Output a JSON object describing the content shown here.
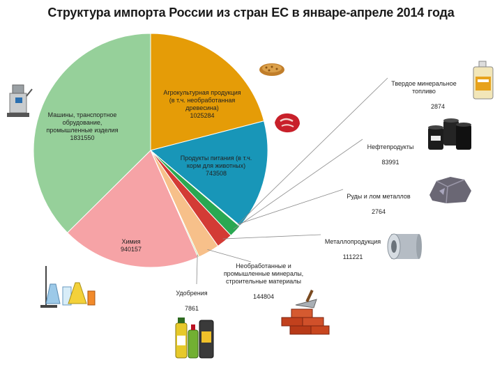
{
  "title": "Структура импорта России из стран ЕС в январе-апреле 2014 года",
  "chart_data": {
    "type": "pie",
    "title": "Структура импорта России из стран ЕС в январе-апреле 2014 года",
    "slices": [
      {
        "key": "agro",
        "label": "Агрокультурная продукция\n(в т.ч. необработанная\nдревесина)",
        "value_label": "1025284",
        "value": 1025284,
        "color": "#e59c07"
      },
      {
        "key": "food",
        "label": "Продукты питания (в т.ч.\nкорм для животных)",
        "value_label": "743508",
        "value": 743508,
        "color": "#1896b8"
      },
      {
        "key": "ore",
        "label": "Руды и лом металлов",
        "value_label": "2764",
        "value": 2764,
        "color": "#6f7f91"
      },
      {
        "key": "solid_fuel",
        "label": "Твердое минеральное\nтопливо",
        "value_label": "2874",
        "value": 2874,
        "color": "#5a4e6e"
      },
      {
        "key": "oil",
        "label": "Нефтепродукты",
        "value_label": "83991",
        "value": 83991,
        "color": "#2aa852"
      },
      {
        "key": "metal",
        "label": "Металлопродукция",
        "value_label": "111221",
        "value": 111221,
        "color": "#d33b35"
      },
      {
        "key": "minerals",
        "label": "Необработанные и\nпромышленные минералы,\nстроительные материалы",
        "value_label": "144804",
        "value": 144804,
        "color": "#f7c08a"
      },
      {
        "key": "fert",
        "label": "Удобрения",
        "value_label": "7861",
        "value": 7861,
        "color": "#a6d37c"
      },
      {
        "key": "chem",
        "label": "Химия",
        "value_label": "940157",
        "value": 940157,
        "color": "#f6a3a6"
      },
      {
        "key": "machines",
        "label": "Машины, транспортное\nобрудование,\nпромышленные изделия",
        "value_label": "1831550",
        "value": 1831550,
        "color": "#96d09a"
      }
    ],
    "start_angle_deg": 0,
    "direction": "clockwise"
  },
  "icons": [
    "equipment-icon",
    "grain-icon",
    "meat-icon",
    "oil-canister-icon",
    "oil-barrels-icon",
    "ore-rock-icon",
    "metal-roll-icon",
    "bricks-trowel-icon",
    "fertilizer-bottles-icon",
    "lab-glassware-icon"
  ]
}
